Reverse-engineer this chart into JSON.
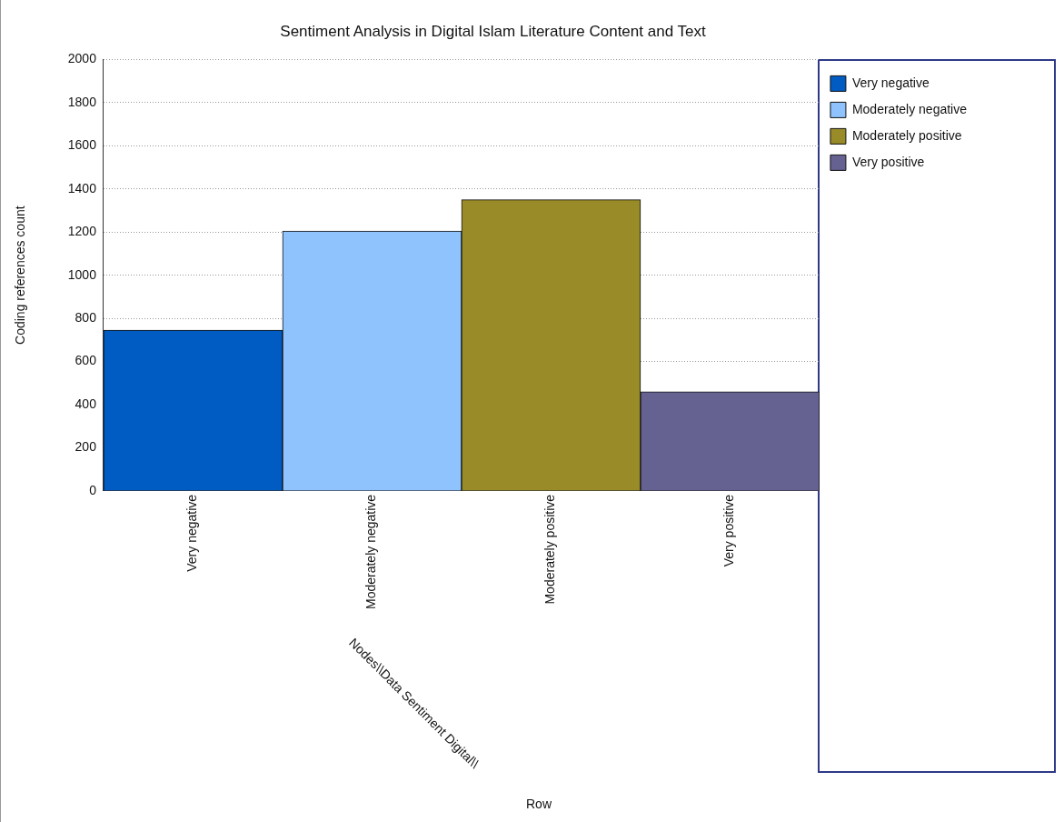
{
  "chart_data": {
    "type": "bar",
    "title": "Sentiment Analysis in Digital Islam Literature Content and Text",
    "ylabel": "Coding references count",
    "annotations": [
      "Nodes\\\\Data Sentiment Digital\\\\",
      "Row"
    ],
    "categories": [
      "Very negative",
      "Moderately negative",
      "Moderately positive",
      "Very positive"
    ],
    "series": [
      {
        "name": "Very negative",
        "color": "#005bc2",
        "values": [
          745,
          null,
          null,
          null
        ]
      },
      {
        "name": "Moderately negative",
        "color": "#8fc3fd",
        "values": [
          null,
          1205,
          null,
          null
        ]
      },
      {
        "name": "Moderately positive",
        "color": "#988b28",
        "values": [
          null,
          null,
          1350,
          null
        ]
      },
      {
        "name": "Very positive",
        "color": "#656292",
        "values": [
          null,
          null,
          null,
          460
        ]
      }
    ],
    "ylim": [
      0,
      2000
    ],
    "yticks": [
      0,
      200,
      400,
      600,
      800,
      1000,
      1200,
      1400,
      1600,
      1800,
      2000
    ],
    "grid": "y",
    "legend": "right"
  }
}
